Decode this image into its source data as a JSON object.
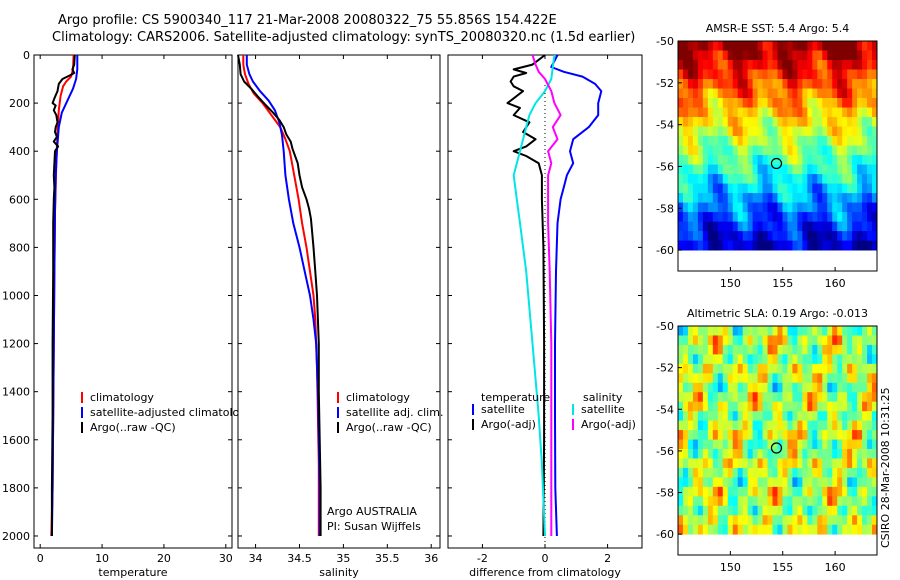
{
  "header": {
    "line1": "Argo profile: CS 5900340_117 21-Mar-2008 20080322_75 55.856S 154.422E",
    "line2": "Climatology: CARS2006. Satellite-adjusted climatology: synTS_20080320.nc (1.5d earlier)"
  },
  "footer": {
    "stamp": "CSIRO 28-Mar-2008 10:31:25"
  },
  "colors": {
    "climatology": "#ff0000",
    "satellite": "#0000ff",
    "argo": "#000000",
    "satellite_salinity": "#00e5e5",
    "argo_adj_salinity": "#ff00ff"
  },
  "chart_data": [
    {
      "id": "temperature",
      "type": "line",
      "xlabel": "temperature",
      "xlim": [
        -1,
        31
      ],
      "xticks": [
        0,
        10,
        20,
        30
      ],
      "ylim": [
        0,
        2050
      ],
      "yticks": [
        0,
        200,
        400,
        600,
        800,
        1000,
        1200,
        1400,
        1600,
        1800,
        2000
      ],
      "y_reversed": true,
      "legend": {
        "position": "lower-right",
        "entries": [
          "climatology",
          "satellite-adjusted climatology",
          "Argo(..raw -QC)"
        ]
      },
      "series": [
        {
          "name": "climatology",
          "color": "#ff0000",
          "points": [
            [
              5.4,
              0
            ],
            [
              5.3,
              60
            ],
            [
              5.0,
              90
            ],
            [
              4.2,
              110
            ],
            [
              3.7,
              130
            ],
            [
              3.3,
              170
            ],
            [
              3.0,
              230
            ],
            [
              2.8,
              320
            ],
            [
              2.6,
              450
            ],
            [
              2.4,
              650
            ],
            [
              2.3,
              900
            ],
            [
              2.2,
              1200
            ],
            [
              2.1,
              1500
            ],
            [
              2.0,
              1800
            ],
            [
              1.8,
              2000
            ]
          ]
        },
        {
          "name": "satellite-adjusted climatology",
          "color": "#0000ff",
          "points": [
            [
              6.0,
              0
            ],
            [
              6.0,
              60
            ],
            [
              5.8,
              100
            ],
            [
              5.3,
              140
            ],
            [
              4.4,
              190
            ],
            [
              3.5,
              240
            ],
            [
              3.0,
              300
            ],
            [
              2.7,
              400
            ],
            [
              2.5,
              500
            ],
            [
              2.4,
              650
            ],
            [
              2.3,
              900
            ],
            [
              2.2,
              1200
            ],
            [
              2.1,
              1500
            ],
            [
              2.0,
              1800
            ],
            [
              1.9,
              2000
            ]
          ]
        },
        {
          "name": "Argo(..raw -QC)",
          "color": "#000000",
          "points": [
            [
              5.6,
              0
            ],
            [
              5.5,
              40
            ],
            [
              5.2,
              60
            ],
            [
              5.5,
              75
            ],
            [
              4.8,
              85
            ],
            [
              3.6,
              100
            ],
            [
              3.0,
              120
            ],
            [
              2.8,
              150
            ],
            [
              2.3,
              180
            ],
            [
              2.0,
              200
            ],
            [
              2.5,
              210
            ],
            [
              2.2,
              230
            ],
            [
              2.6,
              250
            ],
            [
              2.8,
              280
            ],
            [
              2.5,
              300
            ],
            [
              2.4,
              320
            ],
            [
              2.7,
              340
            ],
            [
              2.2,
              360
            ],
            [
              2.9,
              380
            ],
            [
              2.4,
              400
            ],
            [
              2.3,
              450
            ],
            [
              2.2,
              500
            ],
            [
              2.3,
              550
            ],
            [
              2.2,
              600
            ],
            [
              2.1,
              700
            ],
            [
              2.1,
              900
            ],
            [
              2.0,
              1200
            ],
            [
              2.0,
              1500
            ],
            [
              1.9,
              1800
            ],
            [
              1.9,
              2000
            ]
          ]
        }
      ]
    },
    {
      "id": "salinity",
      "type": "line",
      "xlabel": "salinity",
      "xlim": [
        33.8,
        36.1
      ],
      "xticks": [
        34,
        34.5,
        35,
        35.5,
        36
      ],
      "ylim": [
        0,
        2050
      ],
      "yticks": [
        0,
        200,
        400,
        600,
        800,
        1000,
        1200,
        1400,
        1600,
        1800,
        2000
      ],
      "y_reversed": true,
      "legend": {
        "position": "lower-right",
        "entries": [
          "climatology",
          "satellite adj. clim.",
          "Argo(..raw -QC)"
        ]
      },
      "annotation": [
        "Argo AUSTRALIA",
        "PI: Susan Wijffels"
      ],
      "series": [
        {
          "name": "climatology",
          "color": "#ff0000",
          "points": [
            [
              33.86,
              0
            ],
            [
              33.86,
              40
            ],
            [
              33.88,
              80
            ],
            [
              33.92,
              120
            ],
            [
              33.98,
              160
            ],
            [
              34.08,
              200
            ],
            [
              34.18,
              250
            ],
            [
              34.28,
              300
            ],
            [
              34.34,
              350
            ],
            [
              34.39,
              400
            ],
            [
              34.44,
              500
            ],
            [
              34.49,
              600
            ],
            [
              34.53,
              700
            ],
            [
              34.58,
              800
            ],
            [
              34.62,
              900
            ],
            [
              34.66,
              1000
            ],
            [
              34.68,
              1100
            ],
            [
              34.7,
              1300
            ],
            [
              34.71,
              1500
            ],
            [
              34.72,
              1700
            ],
            [
              34.72,
              2000
            ]
          ]
        },
        {
          "name": "satellite adj. clim.",
          "color": "#0000ff",
          "points": [
            [
              33.9,
              0
            ],
            [
              33.9,
              40
            ],
            [
              33.93,
              80
            ],
            [
              33.97,
              110
            ],
            [
              34.05,
              150
            ],
            [
              34.15,
              190
            ],
            [
              34.22,
              230
            ],
            [
              34.27,
              280
            ],
            [
              34.3,
              330
            ],
            [
              34.32,
              400
            ],
            [
              34.34,
              500
            ],
            [
              34.38,
              600
            ],
            [
              34.43,
              700
            ],
            [
              34.5,
              800
            ],
            [
              34.56,
              900
            ],
            [
              34.62,
              1000
            ],
            [
              34.66,
              1100
            ],
            [
              34.69,
              1200
            ],
            [
              34.71,
              1400
            ],
            [
              34.72,
              1600
            ],
            [
              34.73,
              1800
            ],
            [
              34.73,
              2000
            ]
          ]
        },
        {
          "name": "Argo(..raw -QC)",
          "color": "#000000",
          "points": [
            [
              33.8,
              0
            ],
            [
              33.82,
              40
            ],
            [
              33.83,
              80
            ],
            [
              33.87,
              110
            ],
            [
              33.95,
              140
            ],
            [
              34.02,
              170
            ],
            [
              34.12,
              210
            ],
            [
              34.2,
              240
            ],
            [
              34.27,
              270
            ],
            [
              34.32,
              300
            ],
            [
              34.35,
              330
            ],
            [
              34.4,
              360
            ],
            [
              34.42,
              390
            ],
            [
              34.45,
              420
            ],
            [
              34.48,
              450
            ],
            [
              34.5,
              500
            ],
            [
              34.53,
              550
            ],
            [
              34.58,
              600
            ],
            [
              34.61,
              640
            ],
            [
              34.63,
              680
            ],
            [
              34.64,
              720
            ],
            [
              34.66,
              800
            ],
            [
              34.68,
              900
            ],
            [
              34.7,
              1000
            ],
            [
              34.71,
              1100
            ],
            [
              34.72,
              1200
            ],
            [
              34.72,
              1400
            ],
            [
              34.73,
              1600
            ],
            [
              34.74,
              1800
            ],
            [
              34.74,
              2000
            ]
          ]
        }
      ]
    },
    {
      "id": "difference",
      "type": "line",
      "xlabel": "difference from climatology",
      "xlim": [
        -3.1,
        3.1
      ],
      "xticks": [
        -2,
        0,
        2
      ],
      "ylim": [
        0,
        2050
      ],
      "yticks": [
        0,
        200,
        400,
        600,
        800,
        1000,
        1200,
        1400,
        1600,
        1800,
        2000
      ],
      "y_reversed": true,
      "legend": {
        "position": "lower-middle",
        "temperature_heading": "temperature",
        "salinity_heading": "salinity",
        "entries": [
          "satellite",
          "Argo(-adj)",
          "satellite",
          "Argo(-adj)"
        ]
      },
      "series": [
        {
          "name": "temperature satellite",
          "color": "#0000ff",
          "points": [
            [
              0.4,
              0
            ],
            [
              0.2,
              50
            ],
            [
              0.6,
              70
            ],
            [
              1.2,
              90
            ],
            [
              1.6,
              120
            ],
            [
              1.8,
              150
            ],
            [
              1.7,
              200
            ],
            [
              1.7,
              250
            ],
            [
              1.4,
              300
            ],
            [
              0.9,
              350
            ],
            [
              0.8,
              400
            ],
            [
              0.9,
              450
            ],
            [
              0.7,
              500
            ],
            [
              0.6,
              550
            ],
            [
              0.5,
              600
            ],
            [
              0.4,
              700
            ],
            [
              0.35,
              900
            ],
            [
              0.32,
              1200
            ],
            [
              0.32,
              1500
            ],
            [
              0.33,
              1800
            ],
            [
              0.38,
              2000
            ]
          ]
        },
        {
          "name": "temperature Argo(-adj)",
          "color": "#000000",
          "points": [
            [
              0,
              0
            ],
            [
              -0.4,
              40
            ],
            [
              -1.0,
              60
            ],
            [
              -0.6,
              75
            ],
            [
              -1.0,
              90
            ],
            [
              -1.1,
              110
            ],
            [
              -1.0,
              130
            ],
            [
              -0.7,
              150
            ],
            [
              -1.2,
              200
            ],
            [
              -0.8,
              220
            ],
            [
              -1.0,
              250
            ],
            [
              -0.5,
              280
            ],
            [
              -0.7,
              320
            ],
            [
              -0.3,
              350
            ],
            [
              -0.6,
              380
            ],
            [
              -1.0,
              400
            ],
            [
              -0.6,
              420
            ],
            [
              -0.2,
              450
            ],
            [
              -0.1,
              500
            ],
            [
              -0.1,
              600
            ],
            [
              -0.05,
              800
            ],
            [
              -0.03,
              1200
            ],
            [
              -0.03,
              1600
            ],
            [
              -0.05,
              2000
            ]
          ]
        },
        {
          "name": "salinity satellite",
          "color": "#00e5e5",
          "points": [
            [
              0.3,
              0
            ],
            [
              0.25,
              50
            ],
            [
              0.2,
              100
            ],
            [
              0.0,
              150
            ],
            [
              -0.3,
              200
            ],
            [
              -0.5,
              250
            ],
            [
              -0.6,
              300
            ],
            [
              -0.8,
              400
            ],
            [
              -0.9,
              450
            ],
            [
              -1.0,
              500
            ],
            [
              -0.9,
              600
            ],
            [
              -0.8,
              700
            ],
            [
              -0.6,
              900
            ],
            [
              -0.4,
              1200
            ],
            [
              -0.2,
              1500
            ],
            [
              -0.1,
              1700
            ],
            [
              0.0,
              2000
            ]
          ]
        },
        {
          "name": "salinity Argo(-adj)",
          "color": "#ff00ff",
          "points": [
            [
              -0.4,
              0
            ],
            [
              -0.3,
              40
            ],
            [
              -0.2,
              70
            ],
            [
              0.0,
              100
            ],
            [
              0.2,
              150
            ],
            [
              0.3,
              200
            ],
            [
              0.5,
              250
            ],
            [
              0.25,
              300
            ],
            [
              0.4,
              350
            ],
            [
              0.1,
              400
            ],
            [
              0.2,
              450
            ],
            [
              0.1,
              500
            ],
            [
              0.1,
              600
            ],
            [
              0.1,
              700
            ],
            [
              0.15,
              900
            ],
            [
              0.2,
              1200
            ],
            [
              0.2,
              1400
            ],
            [
              0.2,
              1600
            ],
            [
              0.2,
              1800
            ],
            [
              0.2,
              2000
            ]
          ]
        }
      ]
    },
    {
      "id": "sst_map",
      "type": "heatmap",
      "title": "AMSR-E SST: 5.4 Argo: 5.4",
      "xlim": [
        145,
        164
      ],
      "ylim": [
        -61,
        -50
      ],
      "data_ylim": [
        -60,
        -50
      ],
      "xticks": [
        150,
        155,
        160
      ],
      "yticks": [
        -50,
        -52,
        -54,
        -56,
        -58,
        -60
      ],
      "marker": {
        "lon": 154.4,
        "lat": -55.86
      }
    },
    {
      "id": "sla_map",
      "type": "heatmap",
      "title": "Altimetric SLA: 0.19 Argo: -0.013",
      "xlim": [
        145,
        164
      ],
      "ylim": [
        -61,
        -50
      ],
      "data_ylim": [
        -60,
        -50
      ],
      "xticks": [
        150,
        155,
        160
      ],
      "yticks": [
        -50,
        -52,
        -54,
        -56,
        -58,
        -60
      ],
      "marker": {
        "lon": 154.4,
        "lat": -55.86
      }
    }
  ]
}
